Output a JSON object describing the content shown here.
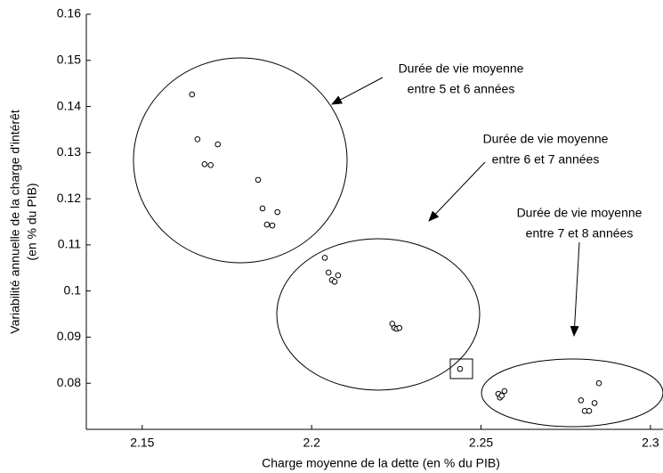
{
  "chart_data": {
    "type": "scatter",
    "xlabel": "Charge moyenne de la dette (en % du PIB)",
    "ylabel": [
      "Variabilité annuelle de la charge d'intérêt",
      "(en % du PIB)"
    ],
    "annotations": [
      [
        "Durée de vie moyenne",
        "entre 5 et 6 années"
      ],
      [
        "Durée de vie moyenne",
        "entre 6 et 7 années"
      ],
      [
        "Durée de vie moyenne",
        "entre 7 et 8 années"
      ]
    ],
    "x": [
      2.1647,
      2.1663,
      2.1684,
      2.1702,
      2.1723,
      2.1842,
      2.1855,
      2.1868,
      2.1884,
      2.1899,
      2.2039,
      2.205,
      2.206,
      2.2068,
      2.2078,
      2.2238,
      2.2244,
      2.2251,
      2.2259,
      2.2438,
      2.2551,
      2.2556,
      2.2561,
      2.2569,
      2.2795,
      2.2806,
      2.2819,
      2.2835,
      2.2848
    ],
    "values": [
      0.1426,
      0.1329,
      0.1275,
      0.1273,
      0.1318,
      0.1241,
      0.1179,
      0.1144,
      0.1142,
      0.1171,
      0.1072,
      0.104,
      0.1024,
      0.102,
      0.1034,
      0.0929,
      0.092,
      0.0918,
      0.092,
      0.0831,
      0.0777,
      0.0769,
      0.0773,
      0.0783,
      0.0763,
      0.074,
      0.074,
      0.0757,
      0.08
    ],
    "color": "#000000",
    "xlim": [
      2.1335,
      2.3037
    ],
    "xticks": [
      2.15,
      2.2,
      2.25,
      2.3
    ],
    "ylim": [
      0.07,
      0.16
    ],
    "yticks": [
      0.08,
      0.09,
      0.1,
      0.11,
      0.12,
      0.13,
      0.14,
      0.15,
      0.16
    ]
  }
}
